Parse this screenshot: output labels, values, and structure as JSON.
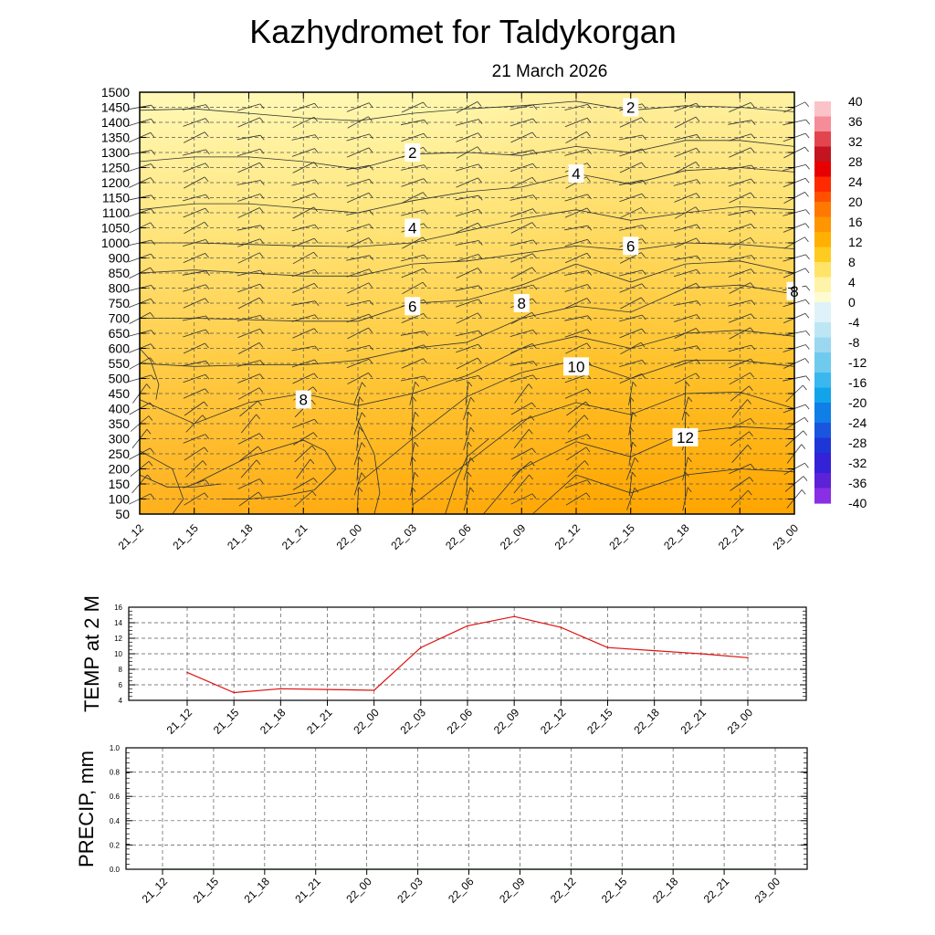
{
  "title": "Kazhydromet  for Taldykorgan",
  "subtitle": "21 March 2026",
  "time_labels": [
    "21_12",
    "21_15",
    "21_18",
    "21_21",
    "22_00",
    "22_03",
    "22_06",
    "22_09",
    "22_12",
    "22_15",
    "22_18",
    "22_21",
    "23_00"
  ],
  "colors": {
    "axis": "#000000",
    "grid": "#555555",
    "contour": "#333333",
    "temp_line": "#e01010",
    "precip_line": "#1a7a1a",
    "field_low": "#fff6a8",
    "field_mid": "#ffd23a",
    "field_high": "#ffa200"
  },
  "chart_data": [
    {
      "type": "heatmap",
      "name": "temperature-cross-section",
      "title": "Kazhydromet  for Taldykorgan",
      "subtitle": "21 March 2026",
      "x": [
        "21_12",
        "21_15",
        "21_18",
        "21_21",
        "22_00",
        "22_03",
        "22_06",
        "22_09",
        "22_12",
        "22_15",
        "22_18",
        "22_21",
        "23_00"
      ],
      "y_levels": [
        50,
        100,
        150,
        200,
        250,
        300,
        350,
        400,
        450,
        500,
        550,
        600,
        650,
        700,
        750,
        800,
        850,
        900,
        1000,
        1050,
        1100,
        1150,
        1200,
        1250,
        1300,
        1350,
        1400,
        1450,
        1500
      ],
      "contour_labels": [
        {
          "text": "2",
          "x": "22_03",
          "y": 1300
        },
        {
          "text": "2",
          "x": "22_15",
          "y": 1450
        },
        {
          "text": "4",
          "x": "22_03",
          "y": 1050
        },
        {
          "text": "4",
          "x": "22_12",
          "y": 1230
        },
        {
          "text": "6",
          "x": "22_03",
          "y": 740
        },
        {
          "text": "6",
          "x": "22_15",
          "y": 980
        },
        {
          "text": "8",
          "x": "21_21",
          "y": 430
        },
        {
          "text": "8",
          "x": "22_09",
          "y": 750
        },
        {
          "text": "8",
          "x": "23_00",
          "y": 790
        },
        {
          "text": "10",
          "x": "22_12",
          "y": 540
        },
        {
          "text": "12",
          "x": "22_18",
          "y": 305
        }
      ],
      "colorbar": {
        "labels": [
          "40",
          "36",
          "32",
          "28",
          "24",
          "20",
          "16",
          "12",
          "8",
          "4",
          "0",
          "-4",
          "-8",
          "-12",
          "-16",
          "-20",
          "-24",
          "-28",
          "-32",
          "-36",
          "-40"
        ],
        "range": [
          -40,
          40
        ]
      },
      "grid": true
    },
    {
      "type": "line",
      "name": "temp-2m",
      "ylabel": "TEMP at 2 M",
      "categories": [
        "21_12",
        "21_15",
        "21_18",
        "21_21",
        "22_00",
        "22_03",
        "22_06",
        "22_09",
        "22_12",
        "22_15",
        "22_18",
        "22_21",
        "23_00"
      ],
      "series": [
        {
          "name": "TEMP at 2 M",
          "values": [
            7.6,
            5.0,
            5.5,
            5.4,
            5.3,
            10.8,
            13.6,
            14.8,
            13.4,
            10.8,
            10.4,
            10.0,
            9.5
          ]
        }
      ],
      "yticks": [
        "4",
        "6",
        "8",
        "10",
        "12",
        "14",
        "16"
      ],
      "ylim": [
        4,
        16
      ],
      "grid": true
    },
    {
      "type": "line",
      "name": "precip",
      "ylabel": "PRECIP, mm",
      "categories": [
        "21_12",
        "21_15",
        "21_18",
        "21_21",
        "22_00",
        "22_03",
        "22_06",
        "22_09",
        "22_12",
        "22_15",
        "22_18",
        "22_21",
        "23_00"
      ],
      "series": [
        {
          "name": "PRECIP, mm",
          "values": [
            0,
            0,
            0,
            0,
            0,
            0,
            0,
            0,
            0,
            0,
            0,
            0,
            0
          ]
        }
      ],
      "yticks": [
        "0.0",
        "0.2",
        "0.4",
        "0.6",
        "0.8",
        "1.0"
      ],
      "ylim": [
        0,
        1
      ],
      "grid": true
    }
  ]
}
